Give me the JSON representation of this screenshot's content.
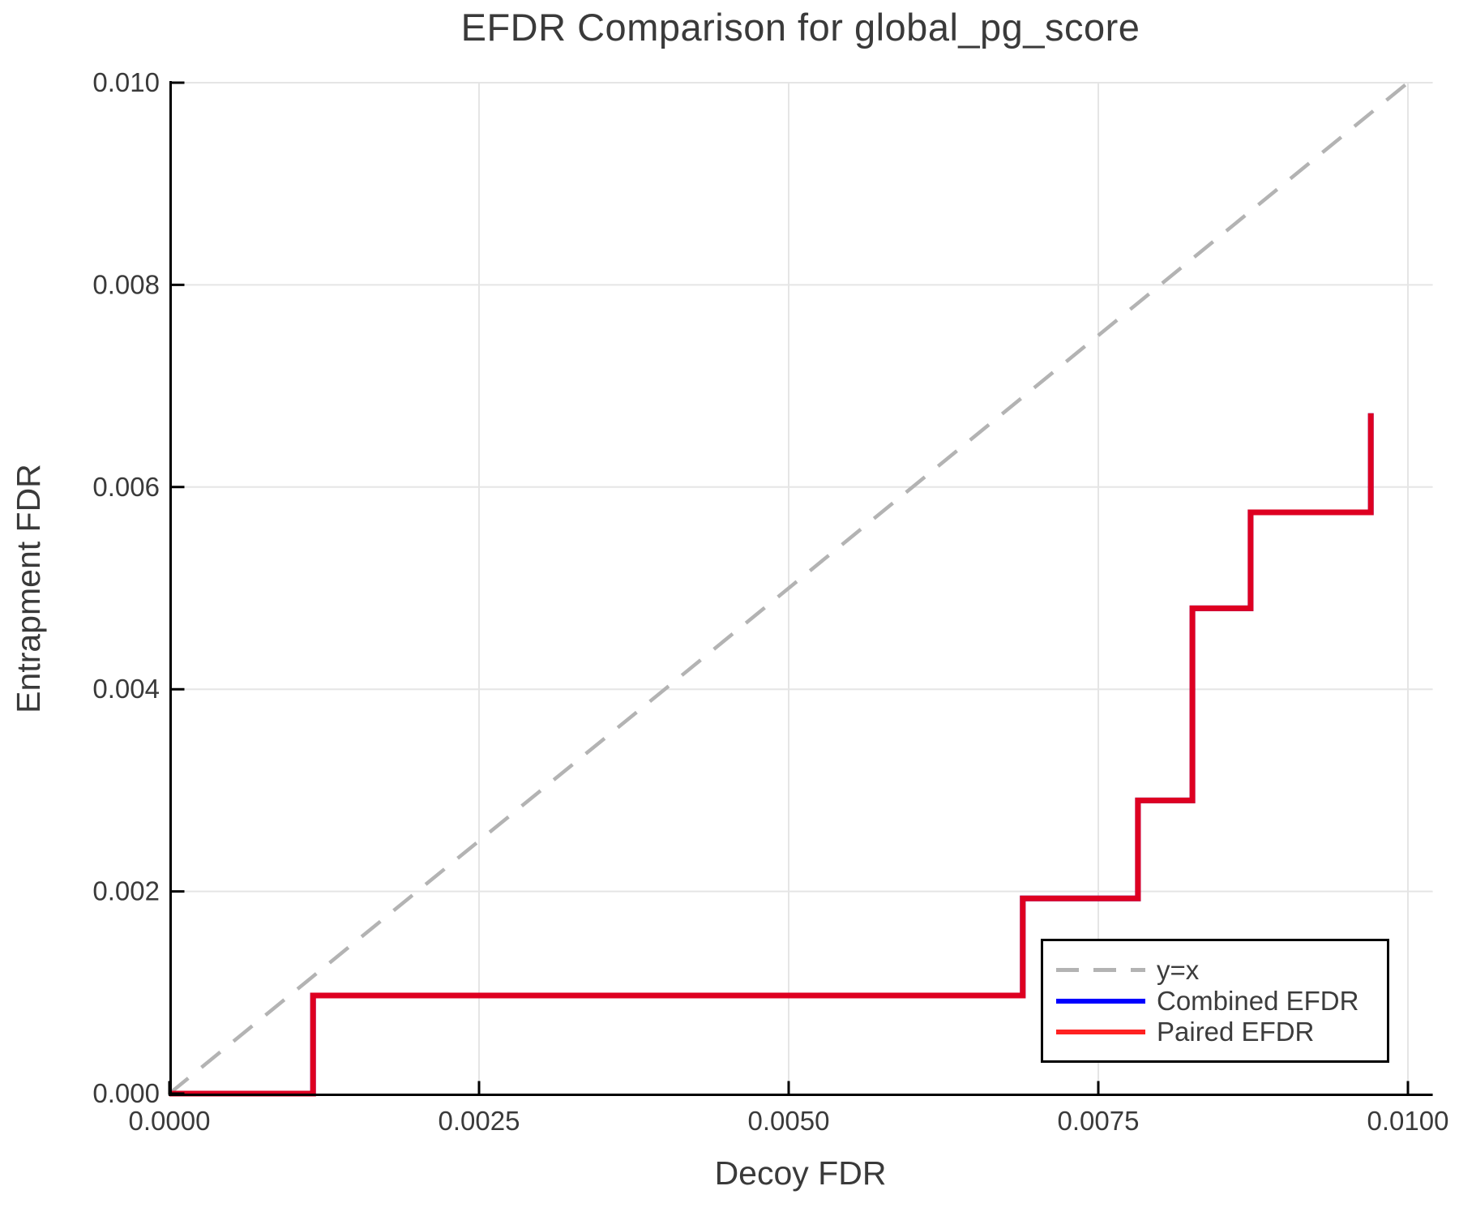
{
  "chart_data": {
    "type": "line",
    "title": "EFDR Comparison for global_pg_score",
    "xlabel": "Decoy FDR",
    "ylabel": "Entrapment FDR",
    "xlim": [
      0.0,
      0.0102
    ],
    "ylim": [
      0.0,
      0.01
    ],
    "grid": true,
    "xticks": {
      "values": [
        0.0,
        0.0025,
        0.005,
        0.0075,
        0.01
      ],
      "labels": [
        "0.0000",
        "0.0025",
        "0.0050",
        "0.0075",
        "0.0100"
      ]
    },
    "yticks": {
      "values": [
        0.0,
        0.002,
        0.004,
        0.006,
        0.008,
        0.01
      ],
      "labels": [
        "0.000",
        "0.002",
        "0.004",
        "0.006",
        "0.008",
        "0.010"
      ]
    },
    "colors": {
      "grid": "#e5e5e5",
      "axis": "#000000",
      "tick_text": "#3a3a3a",
      "diagonal": "#b3b3b3",
      "combined": "#0000ff",
      "paired": "#ff0000"
    },
    "legend": {
      "position": "bottom-right",
      "entries": [
        "y=x",
        "Combined EFDR",
        "Paired EFDR"
      ]
    },
    "series": [
      {
        "name": "y=x",
        "style": "dashed",
        "color": "#b3b3b3",
        "opacity": 1,
        "points": [
          [
            0.0,
            0.0
          ],
          [
            0.01,
            0.01
          ]
        ]
      },
      {
        "name": "Combined EFDR",
        "style": "solid",
        "color": "#0000ff",
        "opacity": 1,
        "points": [
          [
            0.0,
            0.0
          ],
          [
            0.00116,
            0.0
          ],
          [
            0.00116,
            0.00097
          ],
          [
            0.00689,
            0.00097
          ],
          [
            0.00689,
            0.00193
          ],
          [
            0.00782,
            0.00193
          ],
          [
            0.00782,
            0.0029
          ],
          [
            0.00826,
            0.0029
          ],
          [
            0.00826,
            0.0048
          ],
          [
            0.00873,
            0.0048
          ],
          [
            0.00873,
            0.00575
          ],
          [
            0.0097,
            0.00575
          ],
          [
            0.0097,
            0.00673
          ]
        ]
      },
      {
        "name": "Paired EFDR",
        "style": "solid",
        "color": "#ff0000",
        "opacity": 0.87,
        "points": [
          [
            0.0,
            0.0
          ],
          [
            0.00116,
            0.0
          ],
          [
            0.00116,
            0.00097
          ],
          [
            0.00689,
            0.00097
          ],
          [
            0.00689,
            0.00193
          ],
          [
            0.00782,
            0.00193
          ],
          [
            0.00782,
            0.0029
          ],
          [
            0.00826,
            0.0029
          ],
          [
            0.00826,
            0.0048
          ],
          [
            0.00873,
            0.0048
          ],
          [
            0.00873,
            0.00575
          ],
          [
            0.0097,
            0.00575
          ],
          [
            0.0097,
            0.00673
          ]
        ]
      }
    ]
  }
}
